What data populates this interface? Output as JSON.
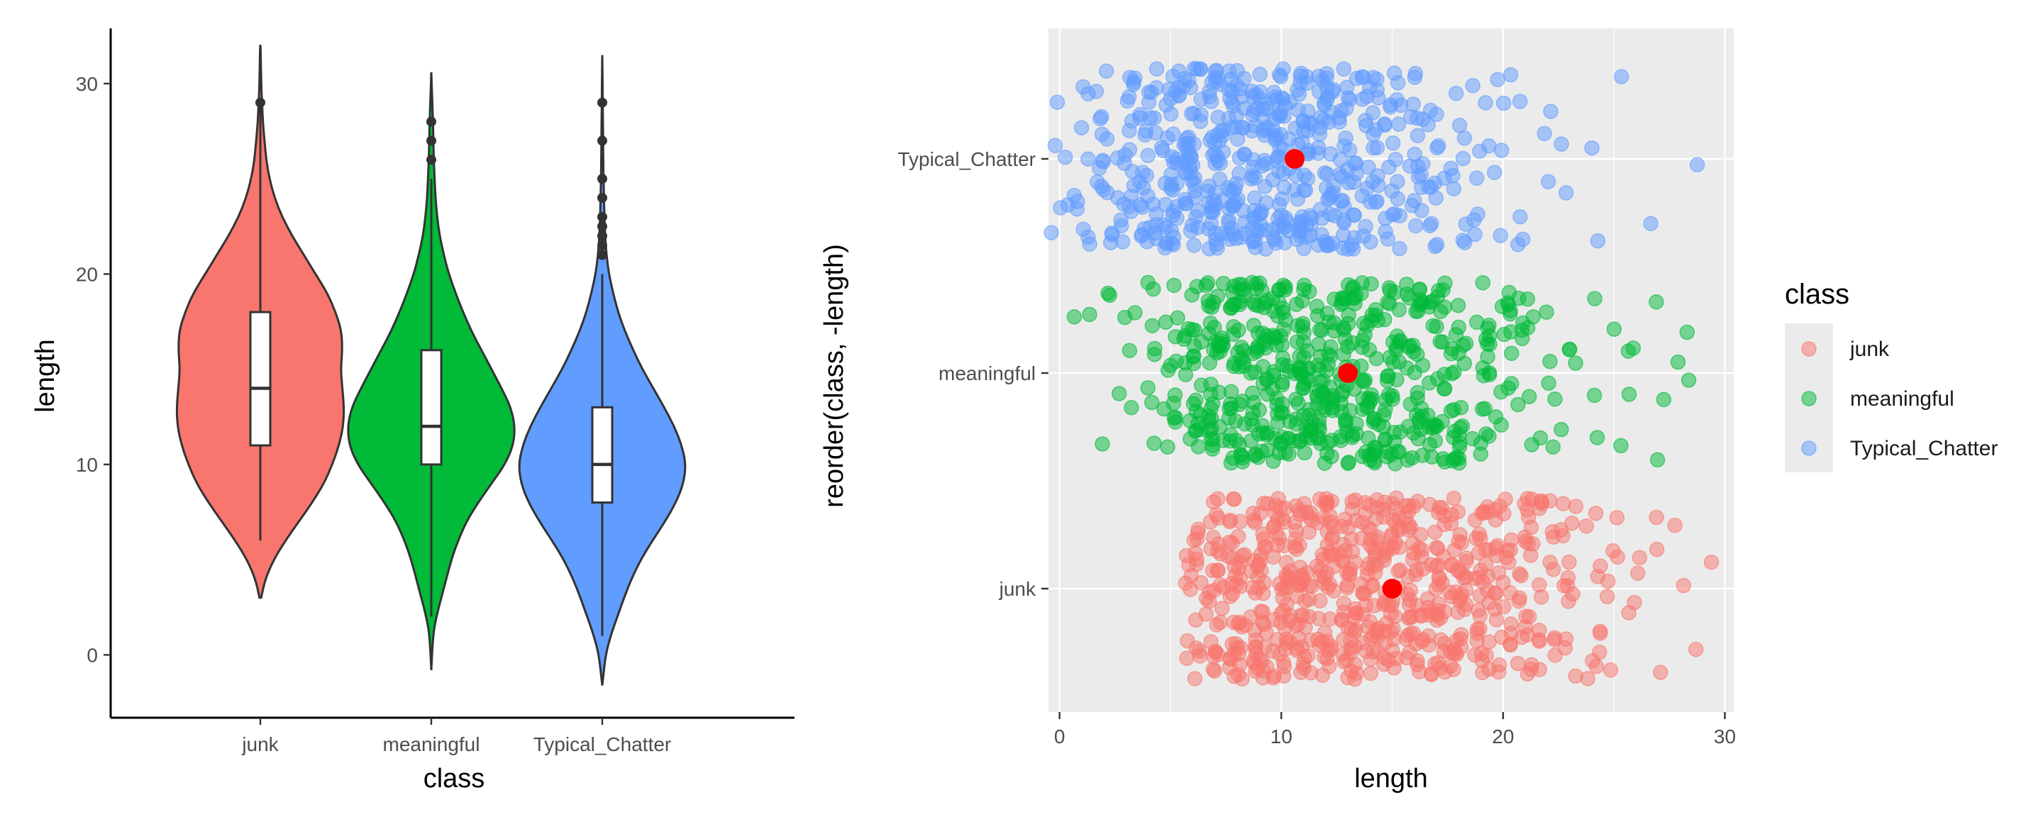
{
  "chart_data": [
    {
      "type": "violin",
      "xlabel": "class",
      "ylabel": "length",
      "ylim": [
        -3.3,
        32.9
      ],
      "yticks": [
        0,
        10,
        20,
        30
      ],
      "categories": [
        "junk",
        "meaningful",
        "Typical_Chatter"
      ],
      "colors": [
        "#F8766D",
        "#00BA38",
        "#619CFF"
      ],
      "series": [
        {
          "name": "junk",
          "min": 3,
          "max": 32,
          "box": {
            "q1": 11,
            "median": 14,
            "q3": 18,
            "whisker_low": 6,
            "whisker_high": 29
          },
          "outliers": [
            29
          ],
          "profile": [
            [
              3,
              0.01
            ],
            [
              4,
              0.06
            ],
            [
              5,
              0.16
            ],
            [
              6,
              0.3
            ],
            [
              7,
              0.46
            ],
            [
              8,
              0.62
            ],
            [
              9,
              0.76
            ],
            [
              10,
              0.86
            ],
            [
              11,
              0.94
            ],
            [
              12,
              0.99
            ],
            [
              13,
              1.0
            ],
            [
              14,
              0.98
            ],
            [
              15,
              0.96
            ],
            [
              16,
              0.98
            ],
            [
              17,
              0.97
            ],
            [
              18,
              0.9
            ],
            [
              19,
              0.8
            ],
            [
              20,
              0.66
            ],
            [
              21,
              0.52
            ],
            [
              22,
              0.38
            ],
            [
              23,
              0.26
            ],
            [
              24,
              0.17
            ],
            [
              25,
              0.11
            ],
            [
              26,
              0.07
            ],
            [
              27,
              0.05
            ],
            [
              28,
              0.03
            ],
            [
              29,
              0.02
            ],
            [
              30,
              0.01
            ],
            [
              32,
              0.003
            ]
          ]
        },
        {
          "name": "meaningful",
          "min": -0.8,
          "max": 30.6,
          "box": {
            "q1": 10,
            "median": 12,
            "q3": 16,
            "whisker_low": 2,
            "whisker_high": 25
          },
          "outliers": [
            26,
            27,
            28
          ],
          "profile": [
            [
              -0.8,
              0.0
            ],
            [
              1,
              0.02
            ],
            [
              2,
              0.06
            ],
            [
              3,
              0.12
            ],
            [
              4,
              0.18
            ],
            [
              5,
              0.24
            ],
            [
              6,
              0.32
            ],
            [
              7,
              0.42
            ],
            [
              8,
              0.56
            ],
            [
              9,
              0.72
            ],
            [
              10,
              0.88
            ],
            [
              11,
              0.98
            ],
            [
              12,
              1.0
            ],
            [
              13,
              0.95
            ],
            [
              14,
              0.84
            ],
            [
              15,
              0.72
            ],
            [
              16,
              0.6
            ],
            [
              17,
              0.48
            ],
            [
              18,
              0.38
            ],
            [
              19,
              0.29
            ],
            [
              20,
              0.21
            ],
            [
              21,
              0.15
            ],
            [
              22,
              0.1
            ],
            [
              23,
              0.07
            ],
            [
              24,
              0.05
            ],
            [
              25,
              0.04
            ],
            [
              26,
              0.03
            ],
            [
              27,
              0.025
            ],
            [
              28,
              0.02
            ],
            [
              29,
              0.012
            ],
            [
              30.6,
              0.0
            ]
          ]
        },
        {
          "name": "Typical_Chatter",
          "min": -1.6,
          "max": 31.5,
          "box": {
            "q1": 8,
            "median": 10,
            "q3": 13,
            "whisker_low": 1,
            "whisker_high": 20
          },
          "outliers": [
            21,
            21.5,
            22,
            22.5,
            23,
            24,
            25,
            27,
            29
          ],
          "profile": [
            [
              -1.6,
              0.0
            ],
            [
              0,
              0.04
            ],
            [
              1,
              0.1
            ],
            [
              2,
              0.18
            ],
            [
              3,
              0.26
            ],
            [
              4,
              0.35
            ],
            [
              5,
              0.46
            ],
            [
              6,
              0.6
            ],
            [
              7,
              0.75
            ],
            [
              8,
              0.88
            ],
            [
              9,
              0.97
            ],
            [
              10,
              1.0
            ],
            [
              11,
              0.95
            ],
            [
              12,
              0.86
            ],
            [
              13,
              0.74
            ],
            [
              14,
              0.61
            ],
            [
              15,
              0.48
            ],
            [
              16,
              0.37
            ],
            [
              17,
              0.27
            ],
            [
              18,
              0.19
            ],
            [
              19,
              0.13
            ],
            [
              20,
              0.08
            ],
            [
              21,
              0.05
            ],
            [
              22,
              0.035
            ],
            [
              23,
              0.025
            ],
            [
              24,
              0.02
            ],
            [
              25,
              0.015
            ],
            [
              26,
              0.012
            ],
            [
              27,
              0.01
            ],
            [
              28,
              0.008
            ],
            [
              29,
              0.006
            ],
            [
              31.5,
              0.0
            ]
          ]
        }
      ]
    },
    {
      "type": "scatter",
      "xlabel": "length",
      "ylabel": "reorder(class, -length)",
      "xlim": [
        -0.5,
        30.4
      ],
      "xticks": [
        0,
        10,
        20,
        30
      ],
      "categories": [
        "junk",
        "meaningful",
        "Typical_Chatter"
      ],
      "colors": [
        "#F8766D",
        "#00BA38",
        "#619CFF"
      ],
      "means": [
        15.0,
        13.0,
        10.6
      ],
      "mean_color": "#FF0000",
      "series": [
        {
          "name": "junk",
          "x": [
            6,
            7,
            8,
            9,
            10,
            11,
            12,
            13,
            14,
            15,
            16,
            17,
            18,
            19,
            20,
            21,
            22,
            23,
            24,
            25,
            26,
            27,
            28,
            29
          ],
          "count": [
            20,
            30,
            40,
            44,
            46,
            46,
            46,
            46,
            46,
            44,
            42,
            40,
            38,
            34,
            28,
            24,
            18,
            14,
            10,
            6,
            4,
            3,
            2,
            2
          ]
        },
        {
          "name": "meaningful",
          "x": [
            1,
            2,
            3,
            4,
            5,
            6,
            7,
            8,
            9,
            10,
            11,
            12,
            13,
            14,
            15,
            16,
            17,
            18,
            19,
            20,
            21,
            22,
            23,
            24,
            25,
            26,
            27,
            28
          ],
          "count": [
            2,
            3,
            5,
            8,
            14,
            26,
            38,
            44,
            46,
            46,
            46,
            46,
            44,
            42,
            38,
            34,
            30,
            26,
            20,
            14,
            10,
            6,
            4,
            3,
            2,
            3,
            3,
            3
          ]
        },
        {
          "name": "Typical_Chatter",
          "x": [
            0,
            1,
            2,
            3,
            4,
            5,
            6,
            7,
            8,
            9,
            10,
            11,
            12,
            13,
            14,
            15,
            16,
            17,
            18,
            19,
            20,
            21,
            22,
            23,
            24,
            25,
            27,
            29
          ],
          "count": [
            6,
            10,
            16,
            22,
            30,
            38,
            44,
            46,
            46,
            46,
            46,
            44,
            40,
            34,
            28,
            22,
            18,
            14,
            10,
            8,
            6,
            4,
            3,
            2,
            2,
            1,
            1,
            1
          ]
        }
      ],
      "legend": {
        "title": "class",
        "position": "right",
        "entries": [
          "junk",
          "meaningful",
          "Typical_Chatter"
        ]
      }
    }
  ]
}
